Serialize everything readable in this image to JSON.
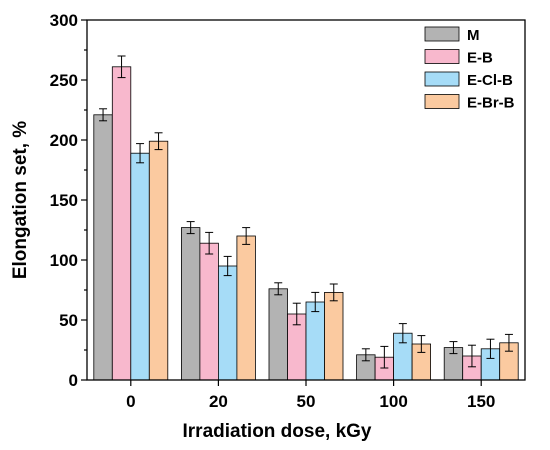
{
  "chart_data": {
    "type": "bar",
    "xlabel": "Irradiation dose, kGy",
    "ylabel": "Elongation set, %",
    "categories": [
      "0",
      "20",
      "50",
      "100",
      "150"
    ],
    "ylim": [
      0,
      300
    ],
    "yticks": [
      "0",
      "50",
      "100",
      "150",
      "200",
      "250",
      "300"
    ],
    "legend_position": "top-right",
    "grid": false,
    "series": [
      {
        "name": "M",
        "color": "#b3b3b3",
        "values": [
          221,
          127,
          76,
          21,
          27
        ],
        "errors": [
          5,
          5,
          5,
          5,
          5
        ]
      },
      {
        "name": "E-B",
        "color": "#f8b8cd",
        "values": [
          261,
          114,
          55,
          19,
          20
        ],
        "errors": [
          9,
          9,
          9,
          9,
          9
        ]
      },
      {
        "name": "E-Cl-B",
        "color": "#a6dcf7",
        "values": [
          189,
          95,
          65,
          39,
          26
        ],
        "errors": [
          8,
          8,
          8,
          8,
          8
        ]
      },
      {
        "name": "E-Br-B",
        "color": "#fbcaa0",
        "values": [
          199,
          120,
          73,
          30,
          31
        ],
        "errors": [
          7,
          7,
          7,
          7,
          7
        ]
      }
    ]
  }
}
